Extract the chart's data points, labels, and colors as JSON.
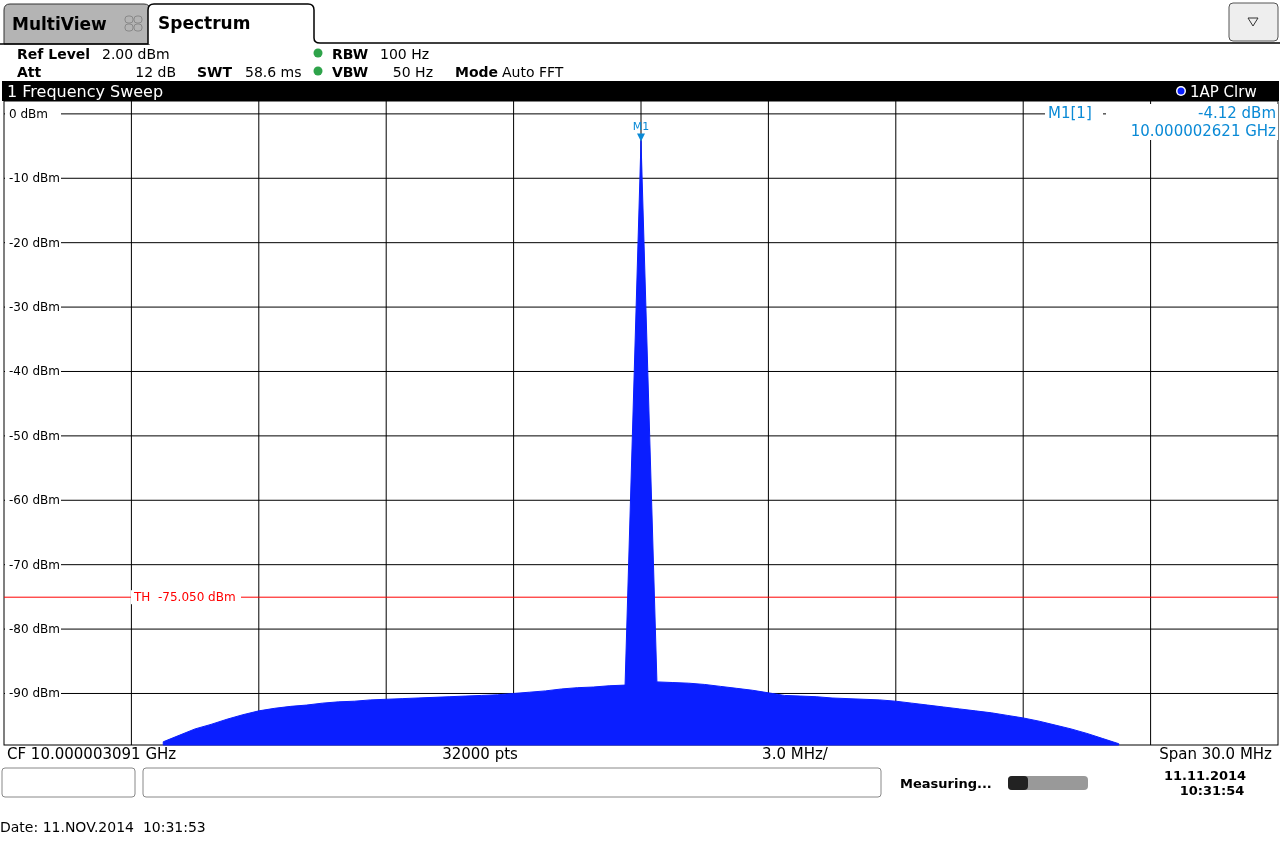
{
  "chart_data": {
    "type": "area",
    "title": "1 Frequency Sweep",
    "categories": [
      null,
      null,
      null,
      null,
      null,
      null,
      null,
      null,
      null,
      null,
      null,
      null,
      null,
      null,
      null,
      null,
      null,
      null,
      null,
      null,
      null,
      null,
      null,
      null,
      null,
      null,
      null,
      null,
      null,
      null,
      null,
      null,
      null,
      null,
      null,
      null,
      null,
      null,
      null,
      null,
      null,
      null,
      null,
      null,
      null,
      null,
      null,
      null,
      null,
      null,
      null,
      null,
      null,
      null,
      null,
      null,
      null,
      null,
      null,
      null,
      null,
      null,
      null,
      null,
      null,
      null,
      null,
      null,
      null,
      null,
      null,
      null,
      null,
      null,
      null,
      null,
      null,
      null,
      null,
      null,
      null
    ],
    "series": [
      {
        "name": "1AP Clrw",
        "color": "#0a1eff",
        "values": [
          null,
          null,
          null,
          null,
          null,
          null,
          null,
          null,
          null,
          null,
          -97.5,
          -96.5,
          -95.5,
          -94.8,
          -94,
          -93.3,
          -92.7,
          -92.3,
          -92,
          -91.8,
          -91.5,
          -91.3,
          -91.2,
          -91,
          -90.9,
          -90.8,
          -90.7,
          -90.6,
          -90.5,
          -90.4,
          -90.3,
          -90.2,
          -90,
          -89.8,
          -89.6,
          -89.3,
          -89.1,
          -89,
          -88.8,
          -88.7,
          -4.12,
          -88.2,
          -88.3,
          -88.4,
          -88.6,
          -88.9,
          -89.2,
          -89.5,
          -89.9,
          -90.3,
          -90.4,
          -90.5,
          -90.7,
          -90.8,
          -90.9,
          -91,
          -91.2,
          -91.5,
          -91.8,
          -92.1,
          -92.4,
          -92.7,
          -93,
          -93.4,
          -93.8,
          -94.3,
          -94.9,
          -95.5,
          -96.2,
          -97,
          -97.8,
          null,
          null,
          null,
          null,
          null,
          null,
          null,
          null,
          null,
          null
        ]
      }
    ],
    "ylim": [
      -98,
      2
    ],
    "yticks": [
      {
        "value": 0,
        "label": "0 dBm"
      },
      {
        "value": -10,
        "label": "-10 dBm"
      },
      {
        "value": -20,
        "label": "-20 dBm"
      },
      {
        "value": -30,
        "label": "-30 dBm"
      },
      {
        "value": -40,
        "label": "-40 dBm"
      },
      {
        "value": -50,
        "label": "-50 dBm"
      },
      {
        "value": -60,
        "label": "-60 dBm"
      },
      {
        "value": -70,
        "label": "-70 dBm"
      },
      {
        "value": -80,
        "label": "-80 dBm"
      },
      {
        "value": -90,
        "label": "-90 dBm"
      }
    ],
    "grid": true,
    "legend": "top right",
    "ref_lines": [
      {
        "axis": "y",
        "value": -75.05,
        "label": "TH  -75.050 dBm",
        "color": "#ff0000"
      }
    ],
    "annotations": [
      "MultiView",
      "Spectrum",
      "Ref Level",
      "2.00 dBm",
      "Att",
      "12 dB",
      "SWT",
      "58.6 ms",
      "RBW",
      "100 Hz",
      "VBW",
      "50 Hz",
      "Mode",
      "Auto FFT",
      "M1[1]",
      "-4.12 dBm",
      "10.000002621 GHz",
      "CF 10.000003091 GHz",
      "32000 pts",
      "3.0 MHz/",
      "Span 30.0 MHz",
      "Measuring...",
      "11.11.2014",
      "10:31:54",
      "Date: 11.NOV.2014  10:31:53",
      {
        "text": "M1",
        "y": -4.12
      }
    ]
  }
}
